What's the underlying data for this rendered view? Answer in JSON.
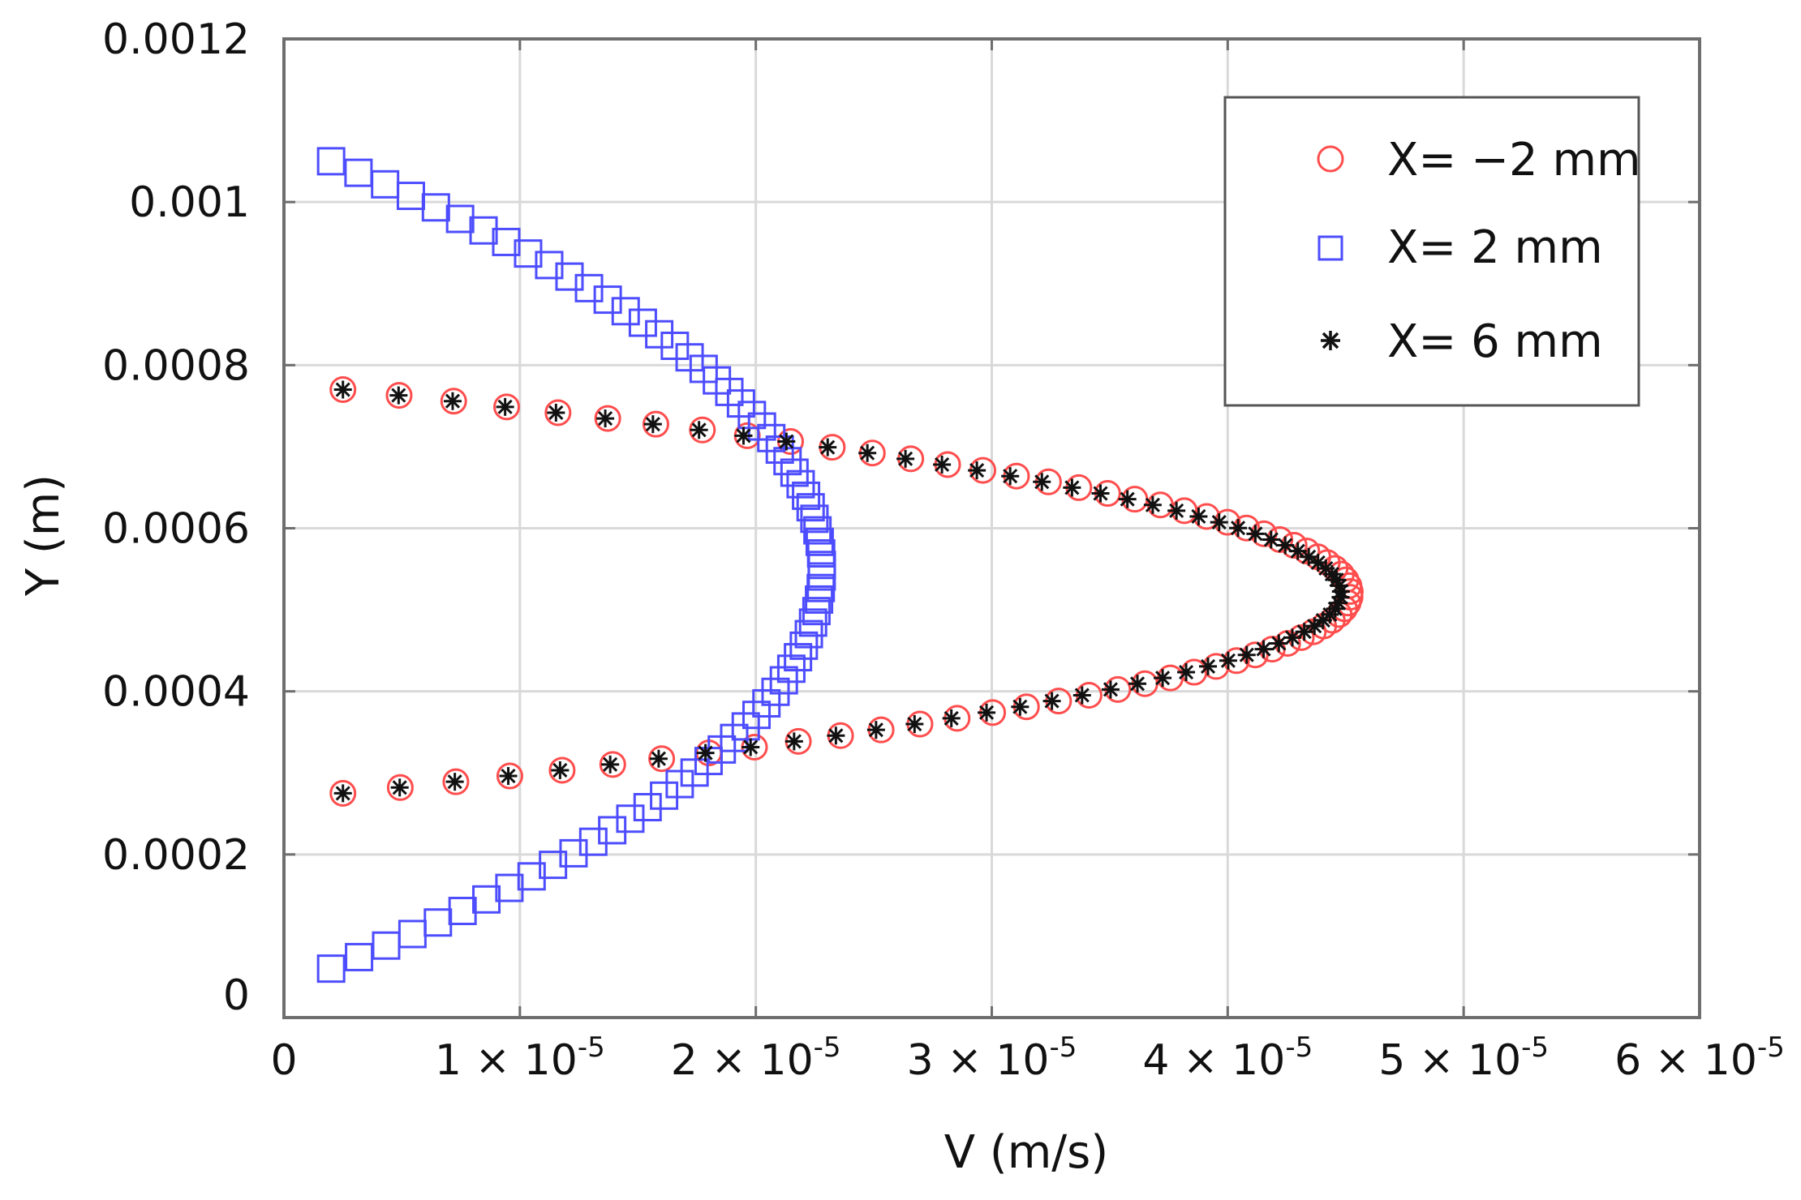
{
  "chart_data": {
    "type": "scatter",
    "xlabel": "V (m/s)",
    "ylabel": "Y (m)",
    "xlim": [
      0,
      6e-05
    ],
    "ylim": [
      0,
      0.0012
    ],
    "grid": true,
    "legend_position": "top-right",
    "x_ticks": [
      {
        "value": 0,
        "mantissa": "0",
        "exp": ""
      },
      {
        "value": 1e-05,
        "mantissa": "1 × 10",
        "exp": "-5"
      },
      {
        "value": 2e-05,
        "mantissa": "2 × 10",
        "exp": "-5"
      },
      {
        "value": 3e-05,
        "mantissa": "3 × 10",
        "exp": "-5"
      },
      {
        "value": 4e-05,
        "mantissa": "4 × 10",
        "exp": "-5"
      },
      {
        "value": 5e-05,
        "mantissa": "5 × 10",
        "exp": "-5"
      },
      {
        "value": 6e-05,
        "mantissa": "6 × 10",
        "exp": "-5"
      }
    ],
    "y_ticks": [
      {
        "value": 0,
        "label": "0"
      },
      {
        "value": 0.0002,
        "label": "0.0002"
      },
      {
        "value": 0.0004,
        "label": "0.0004"
      },
      {
        "value": 0.0006,
        "label": "0.0006"
      },
      {
        "value": 0.0008,
        "label": "0.0008"
      },
      {
        "value": 0.001,
        "label": "0.001"
      },
      {
        "value": 0.0012,
        "label": "0.0012"
      }
    ],
    "series": [
      {
        "name": "X= −2 mm",
        "marker": "circle",
        "color": "#ff4d4d",
        "profile": {
          "vmin": 2.5e-06,
          "vmax": 4.52e-05,
          "y_center": 0.00052,
          "y_bottom": 0.000275,
          "y_top": 0.00077,
          "n": 71
        }
      },
      {
        "name": "X= 2 mm",
        "marker": "square",
        "color": "#4d4dff",
        "profile": {
          "vmin": 2e-06,
          "vmax": 2.28e-05,
          "y_center": 0.00055,
          "y_bottom": 6e-05,
          "y_top": 0.00105,
          "n": 71
        }
      },
      {
        "name": "X= 6 mm",
        "marker": "asterisk",
        "color": "#111111",
        "profile": {
          "vmin": 2.5e-06,
          "vmax": 4.48e-05,
          "y_center": 0.00052,
          "y_bottom": 0.000275,
          "y_top": 0.00077,
          "n": 71
        }
      }
    ]
  }
}
